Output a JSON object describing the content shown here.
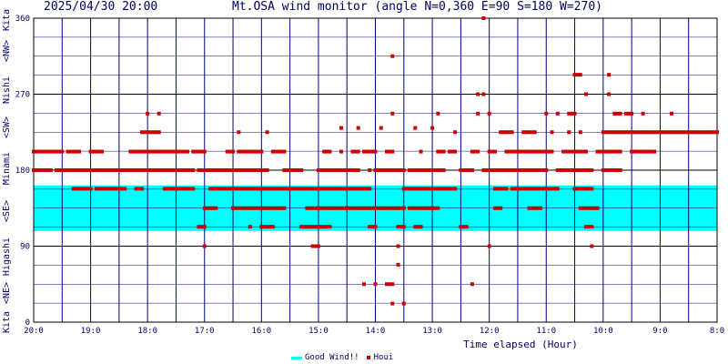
{
  "header": {
    "timestamp": "2025/04/30 20:00",
    "title": "Mt.OSA wind monitor (angle N=0,360 E=90 S=180 W=270)"
  },
  "colors": {
    "grid": "#000080",
    "good_band": "#00ffff",
    "marker": "#cc0000",
    "text": "#000066"
  },
  "chart_data": {
    "type": "scatter",
    "xlabel": "Time elapsed (Hour)",
    "ylabel": "Kita <NE> Higashi <SE> Minami <SW> Nishi <NW> Kita",
    "ylim": [
      0,
      360
    ],
    "yticks": [
      0,
      90,
      180,
      270,
      360
    ],
    "ylabel_parts": [
      "Kita",
      "<NE>",
      "Higashi",
      "<SE>",
      "Minami",
      "<SW>",
      "Nishi",
      "<NW>",
      "Kita"
    ],
    "xlim": [
      20,
      8
    ],
    "xticks": [
      "20:0",
      "19:0",
      "18:0",
      "17:0",
      "16:0",
      "15:0",
      "14:0",
      "13:0",
      "12:0",
      "11:0",
      "10:0",
      "9:0",
      "8:0"
    ],
    "good_wind_range": [
      108,
      162
    ],
    "legend": [
      "Good Wind!!",
      "Houi"
    ],
    "series": [
      {
        "name": "Houi",
        "runs": [
          [
            20.0,
            19.7,
            180
          ],
          [
            20.0,
            19.5,
            202
          ],
          [
            19.6,
            17.2,
            180
          ],
          [
            19.4,
            19.2,
            202
          ],
          [
            19.3,
            19.0,
            158
          ],
          [
            19.0,
            18.8,
            202
          ],
          [
            18.9,
            18.4,
            158
          ],
          [
            18.7,
            18.2,
            180
          ],
          [
            18.3,
            17.3,
            202
          ],
          [
            18.2,
            18.1,
            158
          ],
          [
            18.1,
            17.8,
            225
          ],
          [
            18.0,
            18.0,
            247
          ],
          [
            17.9,
            17.5,
            180
          ],
          [
            17.8,
            17.8,
            247
          ],
          [
            17.7,
            17.2,
            158
          ],
          [
            17.2,
            17.0,
            202
          ],
          [
            17.1,
            16.0,
            180
          ],
          [
            17.0,
            16.8,
            135
          ],
          [
            17.1,
            17.0,
            113
          ],
          [
            17.0,
            17.0,
            90
          ],
          [
            16.9,
            15.3,
            158
          ],
          [
            16.8,
            16.4,
            180
          ],
          [
            16.6,
            16.5,
            202
          ],
          [
            16.4,
            16.4,
            225
          ],
          [
            16.4,
            16.0,
            202
          ],
          [
            16.5,
            15.6,
            135
          ],
          [
            16.3,
            15.9,
            180
          ],
          [
            16.2,
            16.2,
            113
          ],
          [
            16.0,
            15.8,
            113
          ],
          [
            15.9,
            15.9,
            225
          ],
          [
            15.8,
            15.6,
            202
          ],
          [
            15.6,
            15.3,
            180
          ],
          [
            15.4,
            14.1,
            158
          ],
          [
            15.2,
            13.5,
            135
          ],
          [
            15.1,
            15.0,
            90
          ],
          [
            15.3,
            14.8,
            113
          ],
          [
            15.0,
            14.3,
            180
          ],
          [
            14.9,
            14.8,
            202
          ],
          [
            14.6,
            14.6,
            202
          ],
          [
            14.6,
            14.6,
            230
          ],
          [
            14.4,
            14.3,
            202
          ],
          [
            14.3,
            14.3,
            230
          ],
          [
            14.2,
            14.0,
            202
          ],
          [
            14.1,
            14.1,
            180
          ],
          [
            14.2,
            14.2,
            45
          ],
          [
            14.0,
            13.5,
            180
          ],
          [
            14.0,
            14.0,
            45
          ],
          [
            14.1,
            14.0,
            113
          ],
          [
            13.9,
            13.9,
            230
          ],
          [
            13.8,
            13.7,
            202
          ],
          [
            13.7,
            13.7,
            247
          ],
          [
            13.8,
            13.7,
            45
          ],
          [
            13.7,
            13.7,
            315
          ],
          [
            13.6,
            13.6,
            90
          ],
          [
            13.6,
            13.6,
            68
          ],
          [
            13.7,
            13.7,
            22
          ],
          [
            13.5,
            13.5,
            22
          ],
          [
            13.6,
            13.5,
            113
          ],
          [
            13.4,
            12.8,
            180
          ],
          [
            13.5,
            12.6,
            158
          ],
          [
            13.4,
            12.9,
            135
          ],
          [
            13.3,
            13.2,
            113
          ],
          [
            13.2,
            13.2,
            202
          ],
          [
            13.3,
            13.3,
            230
          ],
          [
            13.0,
            13.0,
            230
          ],
          [
            12.9,
            12.9,
            247
          ],
          [
            12.9,
            12.8,
            202
          ],
          [
            12.7,
            12.6,
            202
          ],
          [
            12.6,
            12.6,
            225
          ],
          [
            12.5,
            12.3,
            180
          ],
          [
            12.5,
            12.4,
            113
          ],
          [
            12.3,
            12.2,
            202
          ],
          [
            12.3,
            12.3,
            45
          ],
          [
            12.2,
            12.2,
            270
          ],
          [
            12.2,
            12.2,
            247
          ],
          [
            12.1,
            12.1,
            270
          ],
          [
            12.1,
            12.1,
            360
          ],
          [
            12.0,
            12.0,
            247
          ],
          [
            12.0,
            12.0,
            90
          ],
          [
            12.1,
            11.6,
            180
          ],
          [
            12.0,
            11.9,
            202
          ],
          [
            11.9,
            11.7,
            158
          ],
          [
            11.8,
            11.6,
            225
          ],
          [
            11.9,
            11.8,
            135
          ],
          [
            11.7,
            11.5,
            202
          ],
          [
            11.6,
            11.0,
            180
          ],
          [
            11.6,
            10.8,
            158
          ],
          [
            11.4,
            11.2,
            225
          ],
          [
            11.5,
            10.9,
            202
          ],
          [
            11.3,
            11.1,
            135
          ],
          [
            11.0,
            11.0,
            247
          ],
          [
            10.9,
            10.9,
            225
          ],
          [
            10.8,
            10.8,
            247
          ],
          [
            10.8,
            10.3,
            180
          ],
          [
            10.7,
            10.3,
            202
          ],
          [
            10.6,
            10.6,
            225
          ],
          [
            10.6,
            10.5,
            247
          ],
          [
            10.5,
            10.4,
            293
          ],
          [
            10.4,
            10.4,
            225
          ],
          [
            10.3,
            10.3,
            270
          ],
          [
            10.3,
            10.2,
            180
          ],
          [
            10.2,
            10.2,
            90
          ],
          [
            10.4,
            10.1,
            135
          ],
          [
            10.3,
            10.2,
            113
          ],
          [
            10.5,
            10.2,
            158
          ],
          [
            10.1,
            9.7,
            202
          ],
          [
            10.0,
            9.7,
            180
          ],
          [
            10.0,
            8.0,
            225
          ],
          [
            9.9,
            9.9,
            293
          ],
          [
            9.9,
            9.9,
            270
          ],
          [
            9.8,
            9.7,
            247
          ],
          [
            9.6,
            9.5,
            247
          ],
          [
            9.3,
            9.3,
            247
          ],
          [
            9.5,
            9.1,
            202
          ],
          [
            8.8,
            8.8,
            247
          ]
        ]
      }
    ]
  }
}
